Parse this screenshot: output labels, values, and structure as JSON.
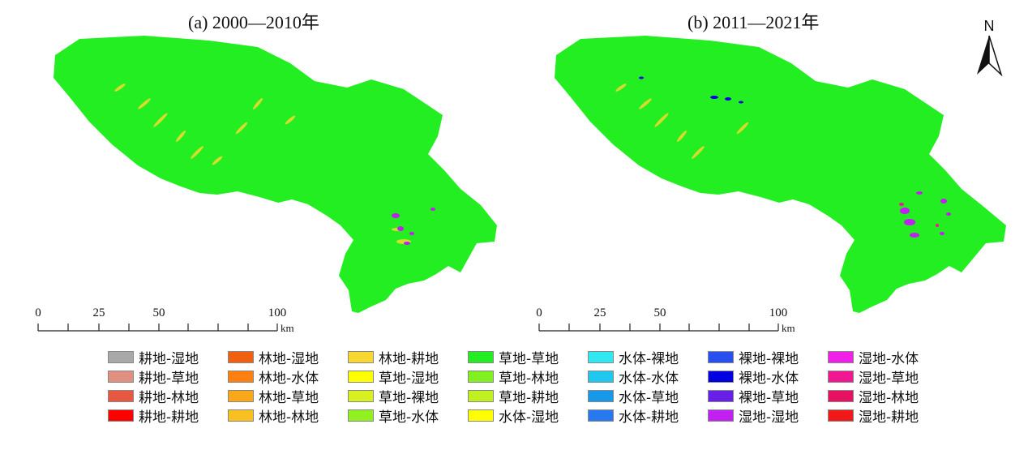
{
  "panels": [
    {
      "title": "(a)  2000—2010年"
    },
    {
      "title": "(b)  2011—2021年"
    }
  ],
  "scalebar": {
    "ticks": [
      "0",
      "25",
      "50",
      "100"
    ],
    "unit": "km"
  },
  "north_arrow": {
    "label": "N",
    "icon": "north-arrow-icon"
  },
  "legend": [
    {
      "label": "耕地-湿地",
      "color": "#a8a8a8"
    },
    {
      "label": "耕地-草地",
      "color": "#e09080"
    },
    {
      "label": "耕地-林地",
      "color": "#e85840"
    },
    {
      "label": "耕地-耕地",
      "color": "#ff0000"
    },
    {
      "label": "林地-湿地",
      "color": "#f06010"
    },
    {
      "label": "林地-水体",
      "color": "#ff8010"
    },
    {
      "label": "林地-草地",
      "color": "#f8a818"
    },
    {
      "label": "林地-林地",
      "color": "#f8c020"
    },
    {
      "label": "林地-耕地",
      "color": "#f8d830"
    },
    {
      "label": "草地-湿地",
      "color": "#ffff00"
    },
    {
      "label": "草地-裸地",
      "color": "#d8f020"
    },
    {
      "label": "草地-水体",
      "color": "#90f020"
    },
    {
      "label": "草地-草地",
      "color": "#22ee22"
    },
    {
      "label": "草地-林地",
      "color": "#80f020"
    },
    {
      "label": "草地-耕地",
      "color": "#c0f020"
    },
    {
      "label": "水体-湿地",
      "color": "#ffff00"
    },
    {
      "label": "水体-裸地",
      "color": "#30e8f0"
    },
    {
      "label": "水体-水体",
      "color": "#20c8f0"
    },
    {
      "label": "水体-草地",
      "color": "#1898e8"
    },
    {
      "label": "水体-耕地",
      "color": "#2878f0"
    },
    {
      "label": "裸地-裸地",
      "color": "#2850f0"
    },
    {
      "label": "裸地-水体",
      "color": "#0000e0"
    },
    {
      "label": "裸地-草地",
      "color": "#6820e8"
    },
    {
      "label": "湿地-湿地",
      "color": "#c020f0"
    },
    {
      "label": "湿地-水体",
      "color": "#f020e8"
    },
    {
      "label": "湿地-草地",
      "color": "#f01890"
    },
    {
      "label": "湿地-林地",
      "color": "#e81060"
    },
    {
      "label": "湿地-耕地",
      "color": "#f01818"
    }
  ]
}
